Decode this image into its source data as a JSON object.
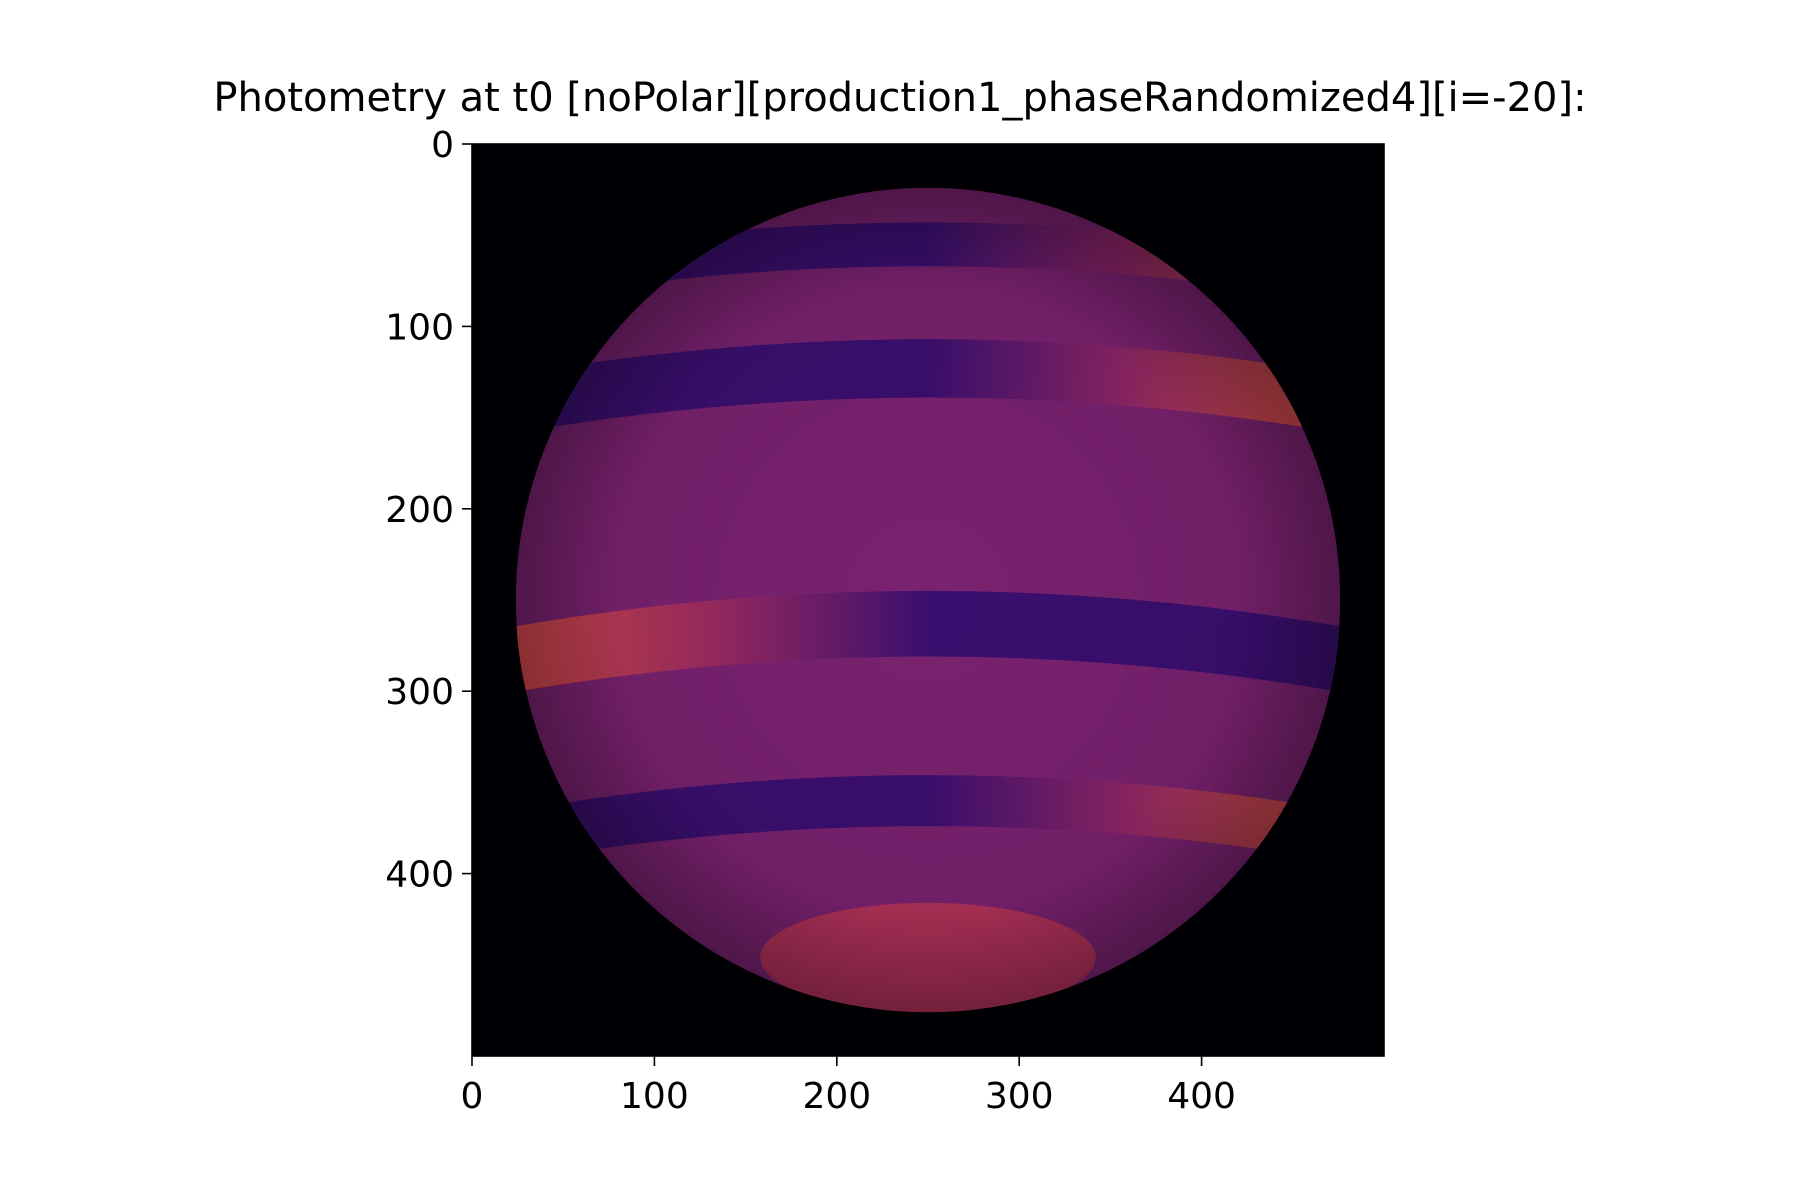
{
  "chart_data": {
    "type": "heatmap",
    "title": "Photometry at t0 [noPolar][production1_phaseRandomized4][i=-20]:",
    "xlabel": "",
    "ylabel": "",
    "xlim": [
      0,
      500
    ],
    "ylim": [
      500,
      0
    ],
    "y_inverted": true,
    "x_ticks": [
      0,
      100,
      200,
      300,
      400
    ],
    "y_ticks": [
      0,
      100,
      200,
      300,
      400
    ],
    "colormap": "magma",
    "background_value_color": "#000004",
    "grid": false,
    "image": {
      "shape": "disk",
      "center": [
        250,
        250
      ],
      "radius": 226,
      "base_color": "#7a2270",
      "bands": [
        {
          "center_y": 55,
          "half_width": 12,
          "bright_side": "right",
          "color_dark": "#3b0f70",
          "color_bright": "#e05a46"
        },
        {
          "center_y": 123,
          "half_width": 16,
          "bright_side": "right",
          "color_dark": "#3b0f70",
          "color_bright": "#e0553e"
        },
        {
          "center_y": 263,
          "half_width": 18,
          "bright_side": "left",
          "color_dark": "#3b0f70",
          "color_bright": "#d94a4a"
        },
        {
          "center_y": 360,
          "half_width": 14,
          "bright_side": "right",
          "color_dark": "#3b0f70",
          "color_bright": "#e0553e"
        }
      ],
      "polar_cap": {
        "center": [
          250,
          446
        ],
        "rx": 92,
        "ry": 30,
        "color": "#b2325a"
      }
    }
  }
}
